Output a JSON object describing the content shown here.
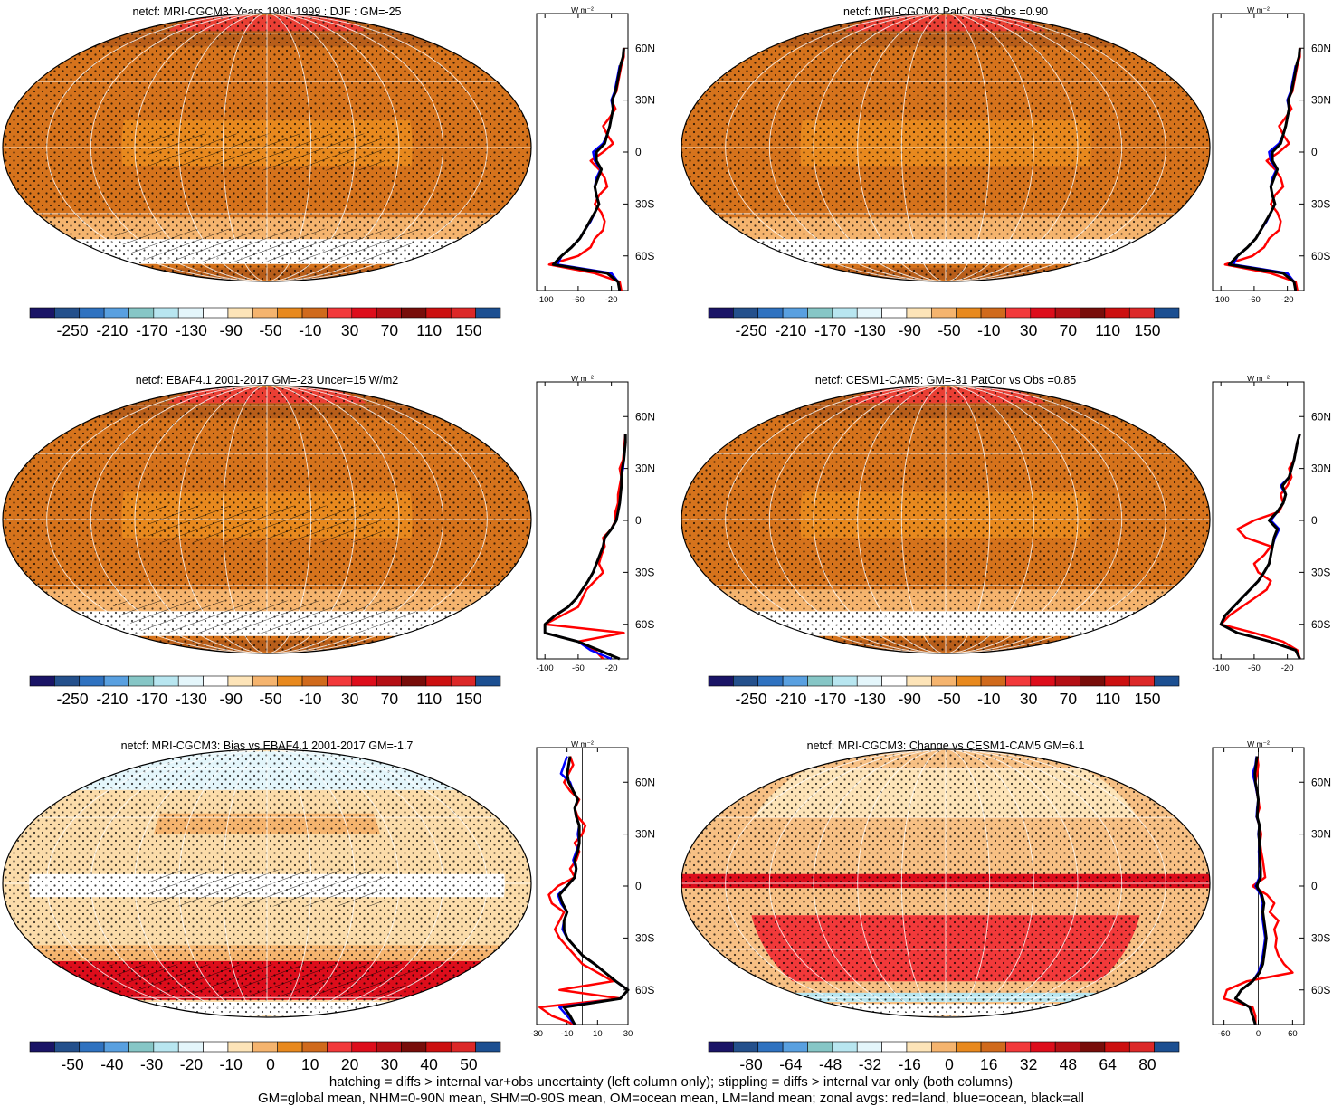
{
  "figure": {
    "footnotes": [
      "hatching = diffs > internal var+obs uncertainty (left column only); stippling = diffs > internal var only (both columns)",
      "GM=global mean, NHM=0-90N mean, SHM=0-90S mean, OM=ocean mean, LM=land mean; zonal avgs: red=land, blue=ocean, black=all"
    ],
    "colors": {
      "land_line": "#ff0000",
      "ocean_line": "#0000ff",
      "all_line": "#000000",
      "palette": [
        "#1a1466",
        "#24508c",
        "#2f72c0",
        "#59a0e0",
        "#86c6c6",
        "#b8e6f0",
        "#e4f6fb",
        "#ffffff",
        "#fde4b8",
        "#f5b46e",
        "#e8891e",
        "#d06a1c",
        "#f2393a",
        "#dd0d1b",
        "#b40f14",
        "#780d0a",
        "#cc1010",
        "#dc2828",
        "#1c4f91"
      ]
    }
  },
  "chart_data": [
    {
      "type": "heatmap",
      "title": "netcf: MRI-CGCM3: Years 1980-1999 : DJF : GM=-25",
      "colorbar": {
        "labels": [
          "-250",
          "-210",
          "-170",
          "-130",
          "-90",
          "-50",
          "-10",
          "30",
          "70",
          "110",
          "150"
        ]
      },
      "map_fill": "#d6731c",
      "lat_labels": [
        "60N",
        "30N",
        "0",
        "30S",
        "60S"
      ],
      "zonal": {
        "unit": "W m-2",
        "xlim": [
          -110,
          0
        ],
        "xticks": [
          "-100",
          "-60",
          "-20"
        ],
        "lat": [
          -80,
          -75,
          -70,
          -65,
          -60,
          -55,
          -50,
          -45,
          -40,
          -35,
          -30,
          -25,
          -20,
          -15,
          -10,
          -5,
          0,
          5,
          10,
          15,
          20,
          25,
          30,
          35,
          40,
          45,
          50,
          55,
          60
        ],
        "series": [
          {
            "name": "land",
            "values": [
              -8,
              -10,
              -40,
              -95,
              -60,
              -45,
              -40,
              -30,
              -28,
              -32,
              -40,
              -35,
              -25,
              -28,
              -35,
              -45,
              -30,
              -18,
              -25,
              -30,
              -22,
              -15,
              -20,
              -14,
              -12,
              -10,
              -8,
              -5,
              -5
            ]
          },
          {
            "name": "ocean",
            "values": [
              -10,
              -12,
              -20,
              -85,
              -80,
              -68,
              -58,
              -52,
              -45,
              -40,
              -35,
              -38,
              -40,
              -38,
              -33,
              -40,
              -42,
              -30,
              -25,
              -22,
              -20,
              -18,
              -20,
              -16,
              -14,
              -12,
              -10,
              null,
              null
            ]
          },
          {
            "name": "all",
            "values": [
              -10,
              -12,
              -25,
              -90,
              -80,
              -68,
              -58,
              -52,
              -46,
              -40,
              -35,
              -38,
              -40,
              -36,
              -32,
              -38,
              -38,
              -28,
              -25,
              -22,
              -20,
              -18,
              -19,
              -15,
              -13,
              -11,
              -9,
              -6,
              -5
            ]
          }
        ]
      }
    },
    {
      "type": "heatmap",
      "title": "netcf: MRI-CGCM3 PatCor vs Obs =0.90",
      "colorbar": {
        "labels": [
          "-250",
          "-210",
          "-170",
          "-130",
          "-90",
          "-50",
          "-10",
          "30",
          "70",
          "110",
          "150"
        ]
      },
      "map_fill": "#d6731c",
      "lat_labels": [
        "60N",
        "30N",
        "0",
        "30S",
        "60S"
      ],
      "zonal": {
        "unit": "W m-2",
        "xlim": [
          -110,
          0
        ],
        "xticks": [
          "-100",
          "-60",
          "-20"
        ],
        "lat": [
          -80,
          -75,
          -70,
          -65,
          -60,
          -55,
          -50,
          -45,
          -40,
          -35,
          -30,
          -25,
          -20,
          -15,
          -10,
          -5,
          0,
          5,
          10,
          15,
          20,
          25,
          30,
          35,
          40,
          45,
          50,
          55,
          60
        ],
        "series": [
          {
            "name": "land",
            "values": [
              -8,
              -10,
              -40,
              -95,
              -62,
              -48,
              -42,
              -30,
              -28,
              -32,
              -40,
              -35,
              -25,
              -28,
              -35,
              -45,
              -30,
              -18,
              -25,
              -30,
              -22,
              -15,
              -20,
              -14,
              -12,
              -10,
              -8,
              -5,
              -5
            ]
          },
          {
            "name": "ocean",
            "values": [
              -10,
              -12,
              -20,
              -85,
              -80,
              -68,
              -58,
              -52,
              -45,
              -40,
              -35,
              -38,
              -40,
              -38,
              -33,
              -40,
              -42,
              -30,
              -25,
              -22,
              -20,
              -18,
              -20,
              -16,
              -14,
              -12,
              -10,
              null,
              null
            ]
          },
          {
            "name": "all",
            "values": [
              -10,
              -12,
              -25,
              -90,
              -80,
              -68,
              -58,
              -52,
              -46,
              -40,
              -35,
              -38,
              -40,
              -36,
              -32,
              -38,
              -38,
              -28,
              -25,
              -22,
              -20,
              -18,
              -19,
              -15,
              -13,
              -11,
              -9,
              -6,
              -5
            ]
          }
        ]
      }
    },
    {
      "type": "heatmap",
      "title": "netcf: EBAF4.1 2001-2017 GM=-23 Uncer=15 W/m2",
      "colorbar": {
        "labels": [
          "-250",
          "-210",
          "-170",
          "-130",
          "-90",
          "-50",
          "-10",
          "30",
          "70",
          "110",
          "150"
        ]
      },
      "map_fill": "#d6731c",
      "lat_labels": [
        "60N",
        "30N",
        "0",
        "30S",
        "60S"
      ],
      "zonal": {
        "unit": "W m-2",
        "xlim": [
          -110,
          0
        ],
        "xticks": [
          "-100",
          "-60",
          "-20"
        ],
        "lat": [
          -80,
          -75,
          -70,
          -65,
          -60,
          -55,
          -50,
          -45,
          -40,
          -35,
          -30,
          -25,
          -20,
          -15,
          -10,
          -5,
          0,
          5,
          10,
          15,
          20,
          25,
          30,
          35,
          40,
          45,
          50
        ],
        "series": [
          {
            "name": "land",
            "values": [
              -30,
              -40,
              -60,
              -5,
              -100,
              -80,
              -60,
              -55,
              -50,
              -40,
              -30,
              -35,
              -32,
              -28,
              -30,
              -20,
              -15,
              -15,
              -12,
              -12,
              -10,
              -8,
              -10,
              -6,
              -5,
              -4,
              -3
            ]
          },
          {
            "name": "ocean",
            "values": [
              -20,
              -45,
              -60,
              -100,
              -100,
              -88,
              -72,
              -62,
              -55,
              -48,
              -42,
              -38,
              -34,
              -30,
              -28,
              -20,
              -14,
              -12,
              -10,
              -9,
              -8,
              -8,
              -6,
              -5,
              -4,
              -3,
              -3
            ]
          },
          {
            "name": "all",
            "values": [
              -10,
              -35,
              -60,
              -100,
              -100,
              -88,
              -72,
              -62,
              -55,
              -48,
              -42,
              -38,
              -34,
              -30,
              -28,
              -20,
              -14,
              -12,
              -10,
              -9,
              -8,
              -8,
              -7,
              -5,
              -4,
              -3,
              -3
            ]
          }
        ]
      }
    },
    {
      "type": "heatmap",
      "title": "netcf: CESM1-CAM5: GM=-31 PatCor vs Obs =0.85",
      "colorbar": {
        "labels": [
          "-250",
          "-210",
          "-170",
          "-130",
          "-90",
          "-50",
          "-10",
          "30",
          "70",
          "110",
          "150"
        ]
      },
      "map_fill": "#d6731c",
      "lat_labels": [
        "60N",
        "30N",
        "0",
        "30S",
        "60S"
      ],
      "zonal": {
        "unit": "W m-2",
        "xlim": [
          -110,
          0
        ],
        "xticks": [
          "-100",
          "-60",
          "-20"
        ],
        "lat": [
          -80,
          -75,
          -70,
          -65,
          -60,
          -55,
          -50,
          -45,
          -40,
          -35,
          -30,
          -25,
          -20,
          -15,
          -10,
          -5,
          0,
          5,
          10,
          15,
          20,
          25,
          30,
          35,
          40,
          45,
          50
        ],
        "series": [
          {
            "name": "land",
            "values": [
              -5,
              -8,
              -25,
              -60,
              -100,
              -90,
              -75,
              -60,
              -45,
              -40,
              -55,
              -60,
              -48,
              -40,
              -70,
              -80,
              -60,
              -30,
              -25,
              -28,
              -20,
              -15,
              -18,
              -12,
              -10,
              -8,
              -5
            ]
          },
          {
            "name": "ocean",
            "values": [
              -5,
              -10,
              -40,
              -80,
              -100,
              -95,
              -85,
              -75,
              -65,
              -55,
              -48,
              -42,
              -40,
              -38,
              -35,
              -30,
              -40,
              -32,
              -25,
              -22,
              -28,
              -18,
              -15,
              -12,
              -10,
              -8,
              -5
            ]
          },
          {
            "name": "all",
            "values": [
              -5,
              -10,
              -40,
              -80,
              -100,
              -95,
              -85,
              -75,
              -65,
              -55,
              -48,
              -42,
              -40,
              -38,
              -36,
              -32,
              -42,
              -32,
              -25,
              -22,
              -26,
              -18,
              -15,
              -12,
              -10,
              -8,
              -5
            ]
          }
        ]
      }
    },
    {
      "type": "heatmap",
      "title": "netcf: MRI-CGCM3: Bias vs EBAF4.1 2001-2017 GM=-1.7",
      "colorbar": {
        "labels": [
          "-50",
          "-40",
          "-30",
          "-20",
          "-10",
          "0",
          "10",
          "20",
          "30",
          "40",
          "50"
        ]
      },
      "map_fill": "#fbdcaa",
      "lat_labels": [
        "60N",
        "30N",
        "0",
        "30S",
        "60S"
      ],
      "zonal": {
        "unit": "W m-2",
        "xlim": [
          -30,
          30
        ],
        "xticks": [
          "-30",
          "-10",
          "10",
          "30"
        ],
        "refline": 0,
        "lat": [
          -80,
          -75,
          -70,
          -65,
          -60,
          -55,
          -50,
          -45,
          -40,
          -35,
          -30,
          -25,
          -20,
          -15,
          -10,
          -5,
          0,
          5,
          10,
          15,
          20,
          25,
          30,
          35,
          40,
          45,
          50,
          55,
          60,
          65,
          70,
          75
        ],
        "series": [
          {
            "name": "land",
            "values": [
              -5,
              -20,
              -28,
              25,
              -15,
              20,
              10,
              0,
              -5,
              -10,
              -15,
              -18,
              -15,
              -12,
              -20,
              -22,
              -16,
              -5,
              -8,
              -4,
              -2,
              -5,
              0,
              2,
              -3,
              -5,
              -2,
              -8,
              -12,
              -9,
              -6,
              -8
            ]
          },
          {
            "name": "ocean",
            "values": [
              -5,
              -10,
              -15,
              25,
              30,
              22,
              15,
              8,
              0,
              -5,
              -10,
              -13,
              -12,
              -10,
              -14,
              -16,
              -10,
              -5,
              -4,
              -6,
              -4,
              -2,
              -3,
              -2,
              -4,
              -5,
              -3,
              -6,
              -8,
              -14,
              -12,
              -10
            ]
          },
          {
            "name": "all",
            "values": [
              -5,
              -8,
              -12,
              25,
              30,
              22,
              15,
              8,
              0,
              -5,
              -10,
              -12,
              -12,
              -10,
              -13,
              -15,
              -10,
              -5,
              -4,
              -5,
              -3,
              -2,
              -2,
              -2,
              -4,
              -5,
              -3,
              -6,
              -9,
              -10,
              -9,
              -8
            ]
          }
        ]
      }
    },
    {
      "type": "heatmap",
      "title": "netcf: MRI-CGCM3: Change vs CESM1-CAM5 GM=6.1",
      "colorbar": {
        "labels": [
          "-80",
          "-64",
          "-48",
          "-32",
          "-16",
          "0",
          "16",
          "32",
          "48",
          "64",
          "80"
        ]
      },
      "map_fill": "#f7c084",
      "lat_labels": [
        "60N",
        "30N",
        "0",
        "30S",
        "60S"
      ],
      "zonal": {
        "unit": "W m-2",
        "xlim": [
          -80,
          80
        ],
        "xticks": [
          "-60",
          "0",
          "60"
        ],
        "refline": 0,
        "lat": [
          -80,
          -75,
          -70,
          -65,
          -60,
          -55,
          -50,
          -45,
          -40,
          -35,
          -30,
          -25,
          -20,
          -15,
          -10,
          -5,
          0,
          5,
          10,
          15,
          20,
          25,
          30,
          35,
          40,
          45,
          50,
          55,
          60,
          65,
          70,
          75
        ],
        "series": [
          {
            "name": "land",
            "values": [
              -5,
              -5,
              -10,
              -60,
              -55,
              -20,
              60,
              45,
              35,
              30,
              32,
              28,
              35,
              20,
              28,
              15,
              -10,
              12,
              10,
              8,
              5,
              3,
              5,
              2,
              -3,
              2,
              0,
              -3,
              -5,
              -2,
              0,
              -2
            ]
          },
          {
            "name": "ocean",
            "values": [
              -5,
              -10,
              -15,
              -40,
              -30,
              -10,
              0,
              5,
              8,
              10,
              12,
              10,
              8,
              6,
              8,
              4,
              -5,
              2,
              3,
              2,
              1,
              2,
              0,
              2,
              -3,
              -2,
              0,
              -3,
              -6,
              -10,
              -5,
              -3
            ]
          },
          {
            "name": "all",
            "values": [
              -5,
              -10,
              -15,
              -40,
              -30,
              -10,
              2,
              8,
              10,
              12,
              14,
              12,
              10,
              8,
              10,
              6,
              -3,
              4,
              4,
              3,
              2,
              2,
              1,
              2,
              -2,
              -1,
              0,
              -2,
              -5,
              -6,
              -4,
              -2
            ]
          }
        ]
      }
    }
  ]
}
